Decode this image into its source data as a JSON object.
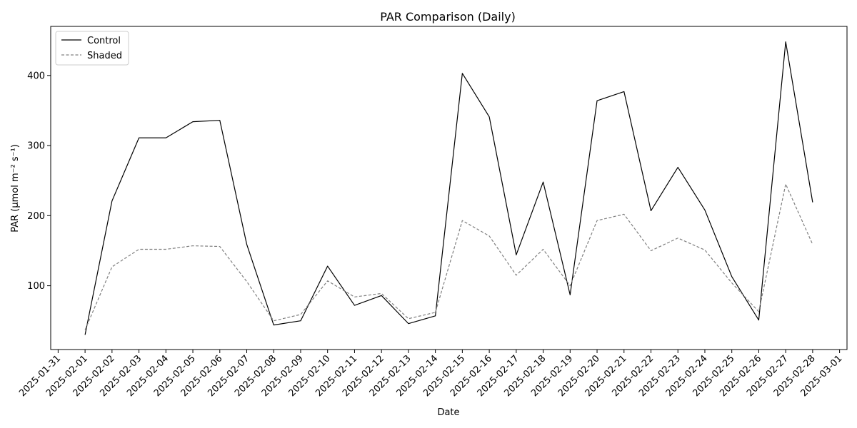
{
  "chart_data": {
    "type": "line",
    "title": "PAR Comparison (Daily)",
    "xlabel": "Date",
    "ylabel": "PAR (µmol m⁻² s⁻¹)",
    "x": [
      "2025-02-01",
      "2025-02-02",
      "2025-02-03",
      "2025-02-04",
      "2025-02-05",
      "2025-02-06",
      "2025-02-07",
      "2025-02-08",
      "2025-02-09",
      "2025-02-10",
      "2025-02-11",
      "2025-02-12",
      "2025-02-13",
      "2025-02-14",
      "2025-02-15",
      "2025-02-16",
      "2025-02-17",
      "2025-02-18",
      "2025-02-19",
      "2025-02-20",
      "2025-02-21",
      "2025-02-22",
      "2025-02-23",
      "2025-02-24",
      "2025-02-25",
      "2025-02-26",
      "2025-02-27",
      "2025-02-28"
    ],
    "x_ticks": [
      "2025-01-31",
      "2025-02-01",
      "2025-02-02",
      "2025-02-03",
      "2025-02-04",
      "2025-02-05",
      "2025-02-06",
      "2025-02-07",
      "2025-02-08",
      "2025-02-09",
      "2025-02-10",
      "2025-02-11",
      "2025-02-12",
      "2025-02-13",
      "2025-02-14",
      "2025-02-15",
      "2025-02-16",
      "2025-02-17",
      "2025-02-18",
      "2025-02-19",
      "2025-02-20",
      "2025-02-21",
      "2025-02-22",
      "2025-02-23",
      "2025-02-24",
      "2025-02-25",
      "2025-02-26",
      "2025-02-27",
      "2025-02-28",
      "2025-03-01"
    ],
    "xlim": [
      "2025-01-30T17:24",
      "2025-03-01T06:36"
    ],
    "ylim": [
      9,
      470
    ],
    "y_ticks": [
      100,
      200,
      300,
      400
    ],
    "grid": false,
    "legend": "top-left",
    "series": [
      {
        "name": "Control",
        "color": "#000000",
        "style": "solid",
        "values": [
          30,
          221,
          311,
          311,
          334,
          336,
          159,
          44,
          50,
          128,
          72,
          86,
          46,
          57,
          403,
          341,
          144,
          248,
          87,
          364,
          377,
          207,
          269,
          208,
          113,
          51,
          448,
          219
        ]
      },
      {
        "name": "Shaded",
        "color": "#808080",
        "style": "dashed",
        "values": [
          37,
          127,
          152,
          152,
          157,
          156,
          106,
          50,
          59,
          107,
          84,
          89,
          53,
          62,
          193,
          171,
          115,
          152,
          100,
          193,
          202,
          150,
          168,
          151,
          104,
          63,
          245,
          159
        ]
      }
    ]
  }
}
